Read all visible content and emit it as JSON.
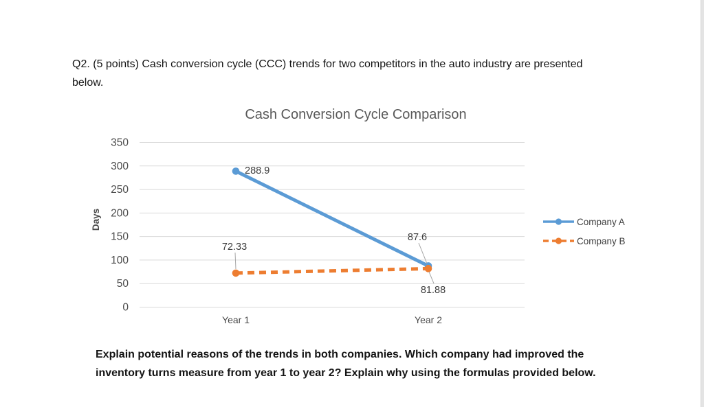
{
  "question": {
    "text": "Q2. (5 points) Cash conversion cycle (CCC) trends for two competitors in the auto industry are presented\nbelow."
  },
  "chart_data": {
    "type": "line",
    "title": "Cash Conversion Cycle Comparison",
    "categories": [
      "Year 1",
      "Year 2"
    ],
    "series": [
      {
        "name": "Company A",
        "values": [
          288.9,
          87.6
        ],
        "color": "#5B9BD5",
        "line_style": "solid"
      },
      {
        "name": "Company B",
        "values": [
          72.33,
          81.88
        ],
        "color": "#ED7D31",
        "line_style": "dashed"
      }
    ],
    "xlabel": "",
    "ylabel": "Days",
    "ylim": [
      0,
      350
    ],
    "ytick_step": 50,
    "grid": true,
    "legend_position": "right",
    "data_labels_shown": true,
    "gridline_color": "#D9D9D9",
    "leader_line_color": "#A6A6A6"
  },
  "instruction": {
    "text": "Explain potential reasons of the trends in both companies. Which company had improved the\ninventory turns measure from year 1 to year 2? Explain why using the formulas provided below."
  }
}
